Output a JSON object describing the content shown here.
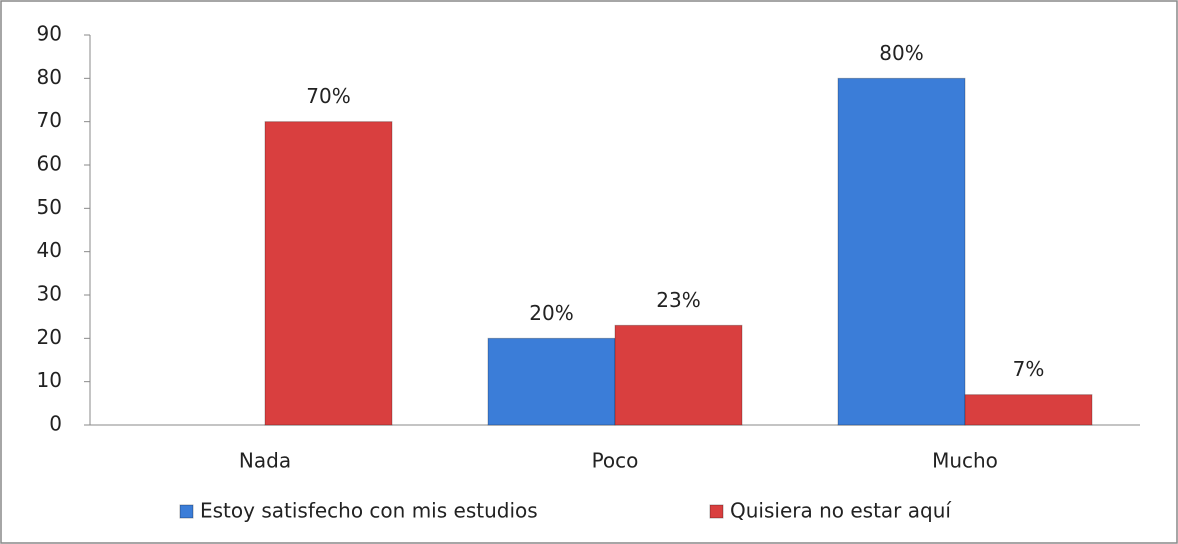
{
  "chart_data": {
    "type": "bar",
    "categories": [
      "Nada",
      "Poco",
      "Mucho"
    ],
    "series": [
      {
        "name": "Estoy satisfecho con mis estudios",
        "color": "#3b7dd8",
        "values": [
          null,
          20,
          80
        ],
        "value_labels": [
          null,
          "20%",
          "80%"
        ]
      },
      {
        "name": "Quisiera no estar aquí",
        "color": "#d93f3f",
        "values": [
          70,
          23,
          7
        ],
        "value_labels": [
          "70%",
          "23%",
          "7%"
        ]
      }
    ],
    "ylim": [
      0,
      90
    ],
    "yticks": [
      0,
      10,
      20,
      30,
      40,
      50,
      60,
      70,
      80,
      90
    ],
    "grid": false,
    "legend": "bottom"
  }
}
